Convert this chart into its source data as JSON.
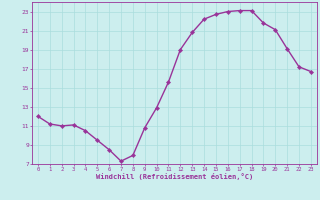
{
  "x": [
    0,
    1,
    2,
    3,
    4,
    5,
    6,
    7,
    8,
    9,
    10,
    11,
    12,
    13,
    14,
    15,
    16,
    17,
    18,
    19,
    20,
    21,
    22,
    23
  ],
  "y": [
    12.0,
    11.2,
    11.0,
    11.1,
    10.5,
    9.5,
    8.5,
    7.3,
    7.9,
    10.8,
    12.9,
    15.6,
    19.0,
    20.8,
    22.2,
    22.7,
    23.0,
    23.1,
    23.1,
    21.8,
    21.1,
    19.1,
    17.2,
    16.7
  ],
  "line_color": "#993399",
  "marker_color": "#993399",
  "bg_color": "#cceeee",
  "grid_color": "#aadddd",
  "xlabel": "Windchill (Refroidissement éolien,°C)",
  "xlabel_color": "#993399",
  "tick_color": "#993399",
  "ylim": [
    7,
    24
  ],
  "xlim": [
    -0.5,
    23.5
  ],
  "yticks": [
    7,
    9,
    11,
    13,
    15,
    17,
    19,
    21,
    23
  ],
  "xticks": [
    0,
    1,
    2,
    3,
    4,
    5,
    6,
    7,
    8,
    9,
    10,
    11,
    12,
    13,
    14,
    15,
    16,
    17,
    18,
    19,
    20,
    21,
    22,
    23
  ],
  "figsize": [
    3.2,
    2.0
  ],
  "dpi": 100
}
